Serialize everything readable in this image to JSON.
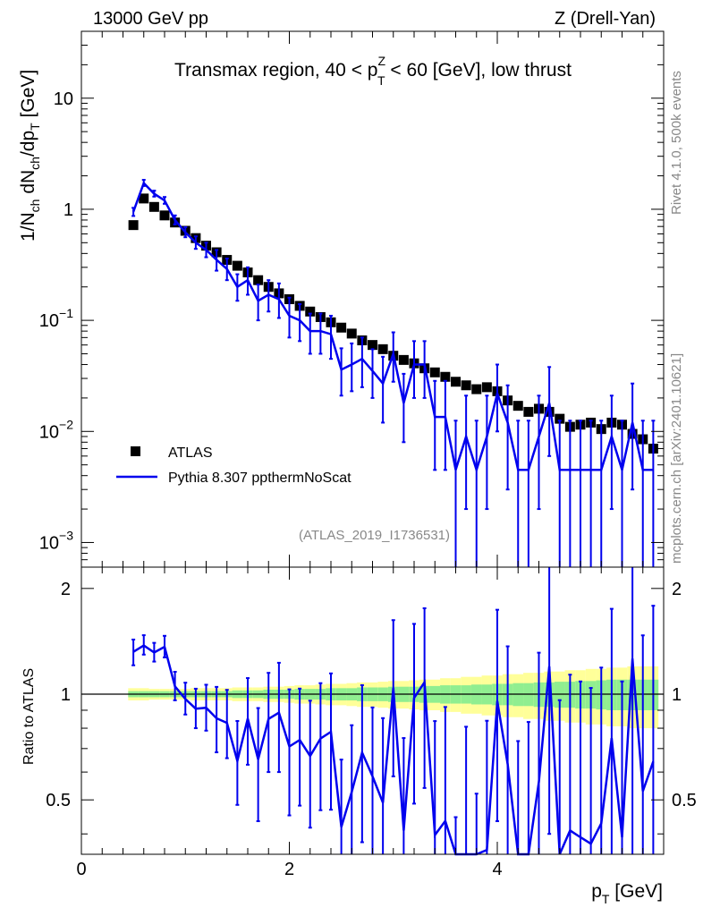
{
  "header": {
    "left": "13000 GeV pp",
    "right": "Z (Drell-Yan)"
  },
  "side_text": {
    "rivet": "Rivet 4.1.0,  500k events",
    "mcplots": "mcplots.cern.ch [arXiv:2401.10621]"
  },
  "chart_data": {
    "type": "scatter",
    "title_parts": {
      "pre": "Transmax region, 40 < p",
      "sup": "Z",
      "sub": "T",
      "post": " < 60 [GeV], low thrust"
    },
    "analysis_id": "(ATLAS_2019_I1736531)",
    "ylabel_main": {
      "a": "1/N",
      "a_sub": "ch",
      "b": " dN",
      "b_sub": "ch",
      "c": "/dp",
      "c_sub": "T",
      "d": " [GeV]"
    },
    "ylabel_ratio": "Ratio to ATLAS",
    "xlabel": {
      "main": "p",
      "sub": "T",
      "unit": " [GeV]"
    },
    "xlim": [
      0,
      5.6
    ],
    "ylim_main": [
      0.0006,
      40
    ],
    "ylim_ratio": [
      0.35,
      2.3
    ],
    "x_ticks": [
      "0",
      "2",
      "4"
    ],
    "y_ticks_main": [
      {
        "base": "10",
        "exp": "−3"
      },
      {
        "base": "10",
        "exp": "−2"
      },
      {
        "base": "10",
        "exp": "−1"
      },
      {
        "base": "1",
        "exp": ""
      },
      {
        "base": "10",
        "exp": ""
      }
    ],
    "y_ticks_ratio": [
      "0.5",
      "1",
      "2"
    ],
    "legend": {
      "data_label": "ATLAS",
      "mc_label": "Pythia 8.307 ppthermNoScat",
      "data_color": "#000000",
      "mc_color": "#0000ee"
    },
    "band_colors": {
      "inner": "#90ee90",
      "outer": "#ffff99"
    },
    "data": {
      "x": [
        0.5,
        0.6,
        0.7,
        0.8,
        0.9,
        1.0,
        1.1,
        1.2,
        1.3,
        1.4,
        1.5,
        1.6,
        1.7,
        1.8,
        1.9,
        2.0,
        2.1,
        2.2,
        2.3,
        2.4,
        2.5,
        2.6,
        2.7,
        2.8,
        2.9,
        3.0,
        3.1,
        3.2,
        3.3,
        3.4,
        3.5,
        3.6,
        3.7,
        3.8,
        3.9,
        4.0,
        4.1,
        4.2,
        4.3,
        4.4,
        4.5,
        4.6,
        4.7,
        4.8,
        4.9,
        5.0,
        5.1,
        5.2,
        5.3,
        5.4,
        5.5
      ],
      "y": [
        0.72,
        1.25,
        1.05,
        0.88,
        0.76,
        0.64,
        0.55,
        0.47,
        0.41,
        0.35,
        0.31,
        0.27,
        0.23,
        0.2,
        0.175,
        0.155,
        0.135,
        0.12,
        0.107,
        0.096,
        0.086,
        0.076,
        0.066,
        0.06,
        0.055,
        0.048,
        0.044,
        0.041,
        0.037,
        0.034,
        0.031,
        0.028,
        0.026,
        0.024,
        0.025,
        0.023,
        0.019,
        0.017,
        0.015,
        0.016,
        0.015,
        0.013,
        0.011,
        0.0115,
        0.012,
        0.0105,
        0.012,
        0.0115,
        0.0095,
        0.0085,
        0.007
      ]
    },
    "mc": {
      "x": [
        0.5,
        0.6,
        0.7,
        0.8,
        0.9,
        1.0,
        1.1,
        1.2,
        1.3,
        1.4,
        1.5,
        1.6,
        1.7,
        1.8,
        1.9,
        2.0,
        2.1,
        2.2,
        2.3,
        2.4,
        2.5,
        2.6,
        2.7,
        2.8,
        2.9,
        3.0,
        3.1,
        3.2,
        3.3,
        3.4,
        3.5,
        3.6,
        3.7,
        3.8,
        3.9,
        4.0,
        4.1,
        4.2,
        4.3,
        4.4,
        4.5,
        4.6,
        4.7,
        4.8,
        4.9,
        5.0,
        5.1,
        5.2,
        5.3,
        5.4,
        5.5
      ],
      "y": [
        0.95,
        1.72,
        1.38,
        1.2,
        0.8,
        0.62,
        0.5,
        0.43,
        0.35,
        0.29,
        0.2,
        0.23,
        0.15,
        0.17,
        0.155,
        0.11,
        0.1,
        0.08,
        0.08,
        0.075,
        0.036,
        0.04,
        0.045,
        0.035,
        0.027,
        0.05,
        0.018,
        0.04,
        0.04,
        0.0135,
        0.0135,
        0.0045,
        0.009,
        0.0045,
        0.009,
        0.022,
        0.012,
        0.0045,
        0.0045,
        0.009,
        0.018,
        0.0045,
        0.0045,
        0.0045,
        0.0045,
        0.0045,
        0.009,
        0.0045,
        0.012,
        0.0045,
        0.0045
      ],
      "err_lo": [
        0.08,
        0.1,
        0.08,
        0.08,
        0.07,
        0.06,
        0.06,
        0.06,
        0.07,
        0.06,
        0.05,
        0.06,
        0.05,
        0.05,
        0.05,
        0.04,
        0.035,
        0.03,
        0.03,
        0.03,
        0.015,
        0.017,
        0.02,
        0.015,
        0.015,
        0.022,
        0.01,
        0.02,
        0.02,
        0.009,
        0.009,
        0.0045,
        0.007,
        0.0045,
        0.007,
        0.012,
        0.009,
        0.0045,
        0.0045,
        0.007,
        0.012,
        0.0045,
        0.0045,
        0.0045,
        0.0045,
        0.0045,
        0.007,
        0.0045,
        0.009,
        0.0045,
        0.0045
      ],
      "err_hi": [
        0.08,
        0.12,
        0.09,
        0.09,
        0.08,
        0.07,
        0.07,
        0.07,
        0.08,
        0.07,
        0.06,
        0.07,
        0.06,
        0.06,
        0.06,
        0.05,
        0.04,
        0.035,
        0.035,
        0.035,
        0.02,
        0.022,
        0.025,
        0.02,
        0.02,
        0.028,
        0.015,
        0.025,
        0.025,
        0.015,
        0.015,
        0.008,
        0.012,
        0.008,
        0.012,
        0.018,
        0.014,
        0.008,
        0.008,
        0.012,
        0.02,
        0.008,
        0.008,
        0.008,
        0.008,
        0.008,
        0.012,
        0.008,
        0.015,
        0.008,
        0.008
      ]
    },
    "band": {
      "inner_half": [
        0.02,
        0.02,
        0.02,
        0.02,
        0.02,
        0.02,
        0.02,
        0.02,
        0.02,
        0.02,
        0.025,
        0.025,
        0.025,
        0.03,
        0.03,
        0.03,
        0.035,
        0.035,
        0.035,
        0.04,
        0.04,
        0.04,
        0.045,
        0.045,
        0.045,
        0.05,
        0.05,
        0.05,
        0.055,
        0.055,
        0.06,
        0.06,
        0.06,
        0.065,
        0.065,
        0.07,
        0.07,
        0.075,
        0.075,
        0.08,
        0.08,
        0.085,
        0.085,
        0.09,
        0.09,
        0.095,
        0.1,
        0.1,
        0.1,
        0.1,
        0.1
      ],
      "outer_half": [
        0.04,
        0.04,
        0.035,
        0.035,
        0.035,
        0.035,
        0.04,
        0.04,
        0.04,
        0.04,
        0.045,
        0.045,
        0.045,
        0.05,
        0.05,
        0.055,
        0.06,
        0.06,
        0.065,
        0.07,
        0.07,
        0.075,
        0.08,
        0.08,
        0.085,
        0.09,
        0.09,
        0.095,
        0.1,
        0.1,
        0.11,
        0.11,
        0.12,
        0.12,
        0.13,
        0.13,
        0.14,
        0.14,
        0.15,
        0.15,
        0.16,
        0.16,
        0.17,
        0.17,
        0.18,
        0.18,
        0.19,
        0.19,
        0.2,
        0.2,
        0.2
      ]
    }
  }
}
